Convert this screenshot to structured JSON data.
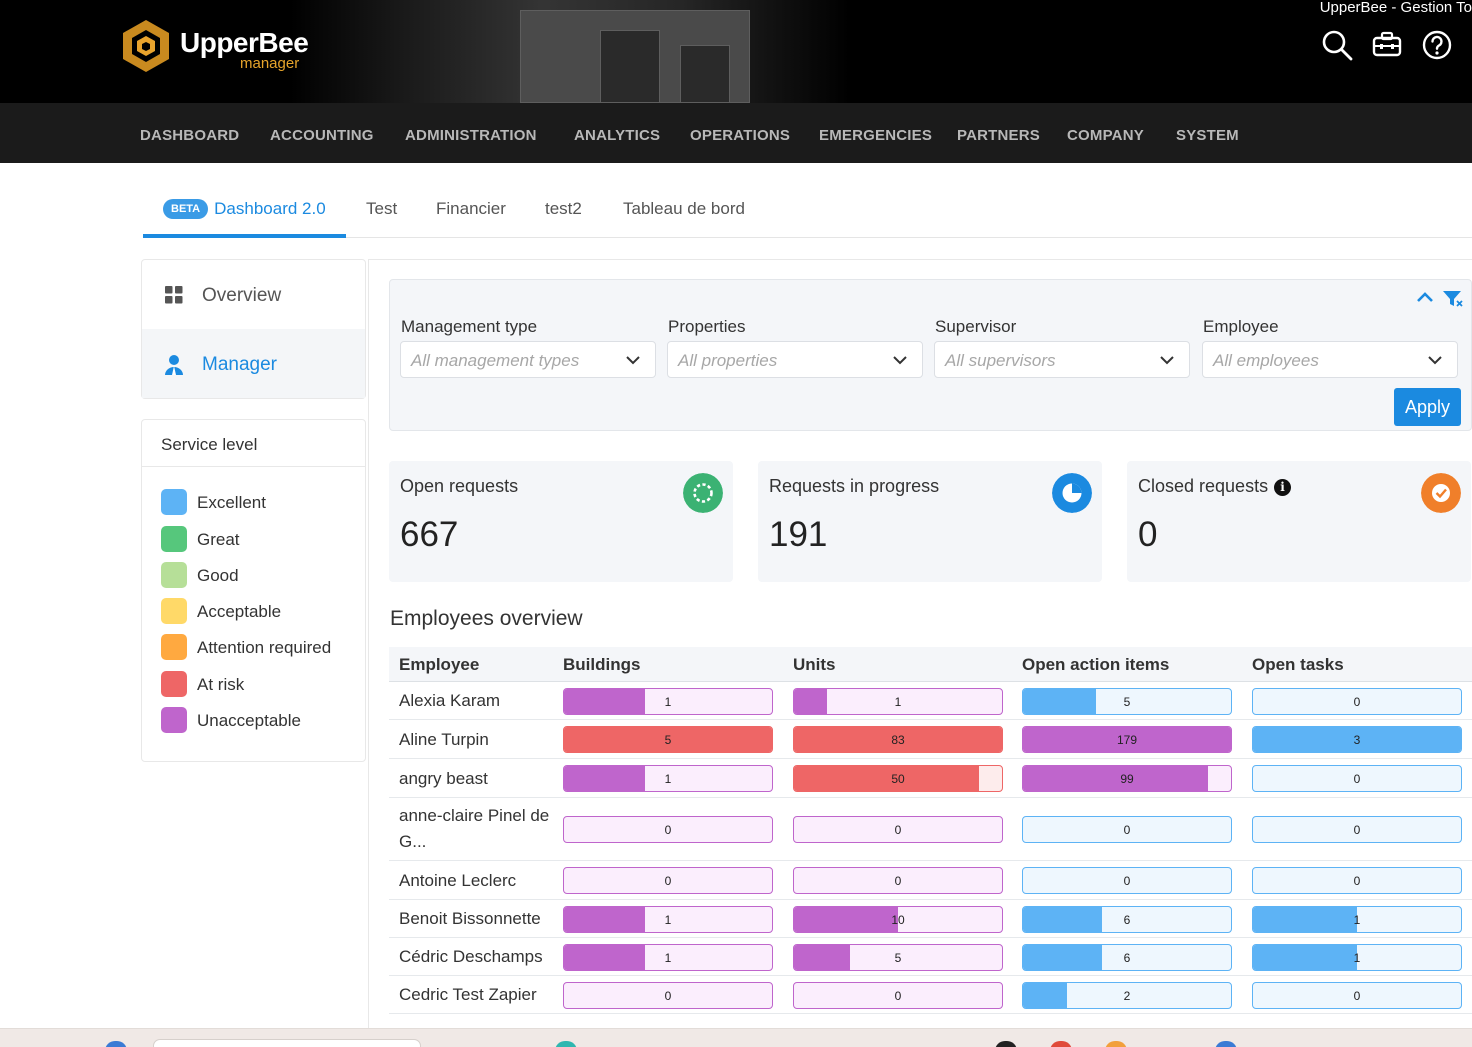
{
  "window": {
    "title": "UpperBee - Gestion To"
  },
  "brand": {
    "name": "UpperBee",
    "subtitle": "manager"
  },
  "header_icons": [
    "search-icon",
    "toolbox-icon",
    "help-icon"
  ],
  "nav": [
    "DASHBOARD",
    "ACCOUNTING",
    "ADMINISTRATION",
    "ANALYTICS",
    "OPERATIONS",
    "EMERGENCIES",
    "PARTNERS",
    "COMPANY",
    "SYSTEM"
  ],
  "tabs": {
    "badge": "BETA",
    "items": [
      "Dashboard 2.0",
      "Test",
      "Financier",
      "test2",
      "Tableau de bord"
    ],
    "active": 0
  },
  "sidebar": {
    "items": [
      {
        "label": "Overview",
        "icon": "grid-icon"
      },
      {
        "label": "Manager",
        "icon": "user-icon",
        "selected": true
      }
    ]
  },
  "service_level": {
    "title": "Service level",
    "levels": [
      {
        "label": "Excellent",
        "color": "#5db3f5"
      },
      {
        "label": "Great",
        "color": "#56c77c"
      },
      {
        "label": "Good",
        "color": "#b6df98"
      },
      {
        "label": "Acceptable",
        "color": "#ffd968"
      },
      {
        "label": "Attention required",
        "color": "#ffa940"
      },
      {
        "label": "At risk",
        "color": "#ee6666"
      },
      {
        "label": "Unacceptable",
        "color": "#bf65cc"
      }
    ]
  },
  "filters": {
    "fields": [
      {
        "label": "Management type",
        "placeholder": "All management types"
      },
      {
        "label": "Properties",
        "placeholder": "All properties"
      },
      {
        "label": "Supervisor",
        "placeholder": "All supervisors"
      },
      {
        "label": "Employee",
        "placeholder": "All employees"
      }
    ],
    "apply_label": "Apply"
  },
  "cards": [
    {
      "title": "Open requests",
      "value": "667",
      "color": "#3bb273",
      "icon": "circle-dashed-icon"
    },
    {
      "title": "Requests in progress",
      "value": "191",
      "color": "#1b8ae0",
      "icon": "pie-progress-icon"
    },
    {
      "title": "Closed requests",
      "value": "0",
      "color": "#f07f2a",
      "icon": "check-circle-icon",
      "info": "i"
    }
  ],
  "employees": {
    "title": "Employees overview",
    "columns": [
      "Employee",
      "Buildings",
      "Units",
      "Open action items",
      "Open tasks"
    ],
    "rows": [
      {
        "name": "Alexia Karam",
        "cells": [
          {
            "v": "1",
            "p": 0.39,
            "c": "#bf65cc",
            "bg": "#fbeefd"
          },
          {
            "v": "1",
            "p": 0.16,
            "c": "#bf65cc",
            "bg": "#fbeefd"
          },
          {
            "v": "5",
            "p": 0.35,
            "c": "#5db3f5",
            "bg": "#eef7fe"
          },
          {
            "v": "0",
            "p": 0,
            "c": "#5db3f5",
            "bg": "#eef7fe"
          }
        ]
      },
      {
        "name": "Aline Turpin",
        "cells": [
          {
            "v": "5",
            "p": 1,
            "c": "#ee6666",
            "bg": "#fdecec"
          },
          {
            "v": "83",
            "p": 1,
            "c": "#ee6666",
            "bg": "#fdecec"
          },
          {
            "v": "179",
            "p": 1,
            "c": "#bf65cc",
            "bg": "#fbeefd"
          },
          {
            "v": "3",
            "p": 1,
            "c": "#5db3f5",
            "bg": "#eef7fe"
          }
        ]
      },
      {
        "name": "angry beast",
        "cells": [
          {
            "v": "1",
            "p": 0.39,
            "c": "#bf65cc",
            "bg": "#fbeefd"
          },
          {
            "v": "50",
            "p": 0.89,
            "c": "#ee6666",
            "bg": "#fdecec"
          },
          {
            "v": "99",
            "p": 0.89,
            "c": "#bf65cc",
            "bg": "#fbeefd"
          },
          {
            "v": "0",
            "p": 0,
            "c": "#5db3f5",
            "bg": "#eef7fe"
          }
        ]
      },
      {
        "name": "anne-claire Pinel de G...",
        "cells": [
          {
            "v": "0",
            "p": 0,
            "c": "#bf65cc",
            "bg": "#fbeefd"
          },
          {
            "v": "0",
            "p": 0,
            "c": "#bf65cc",
            "bg": "#fbeefd"
          },
          {
            "v": "0",
            "p": 0,
            "c": "#5db3f5",
            "bg": "#eef7fe"
          },
          {
            "v": "0",
            "p": 0,
            "c": "#5db3f5",
            "bg": "#eef7fe"
          }
        ]
      },
      {
        "name": "Antoine Leclerc",
        "cells": [
          {
            "v": "0",
            "p": 0,
            "c": "#bf65cc",
            "bg": "#fbeefd"
          },
          {
            "v": "0",
            "p": 0,
            "c": "#bf65cc",
            "bg": "#fbeefd"
          },
          {
            "v": "0",
            "p": 0,
            "c": "#5db3f5",
            "bg": "#eef7fe"
          },
          {
            "v": "0",
            "p": 0,
            "c": "#5db3f5",
            "bg": "#eef7fe"
          }
        ]
      },
      {
        "name": "Benoit Bissonnette",
        "cells": [
          {
            "v": "1",
            "p": 0.39,
            "c": "#bf65cc",
            "bg": "#fbeefd"
          },
          {
            "v": "10",
            "p": 0.5,
            "c": "#bf65cc",
            "bg": "#fbeefd"
          },
          {
            "v": "6",
            "p": 0.38,
            "c": "#5db3f5",
            "bg": "#eef7fe"
          },
          {
            "v": "1",
            "p": 0.5,
            "c": "#5db3f5",
            "bg": "#eef7fe"
          }
        ]
      },
      {
        "name": "Cédric Deschamps",
        "cells": [
          {
            "v": "1",
            "p": 0.39,
            "c": "#bf65cc",
            "bg": "#fbeefd"
          },
          {
            "v": "5",
            "p": 0.27,
            "c": "#bf65cc",
            "bg": "#fbeefd"
          },
          {
            "v": "6",
            "p": 0.38,
            "c": "#5db3f5",
            "bg": "#eef7fe"
          },
          {
            "v": "1",
            "p": 0.5,
            "c": "#5db3f5",
            "bg": "#eef7fe"
          }
        ]
      },
      {
        "name": "Cedric Test Zapier",
        "cells": [
          {
            "v": "0",
            "p": 0,
            "c": "#bf65cc",
            "bg": "#fbeefd"
          },
          {
            "v": "0",
            "p": 0,
            "c": "#bf65cc",
            "bg": "#fbeefd"
          },
          {
            "v": "2",
            "p": 0.21,
            "c": "#5db3f5",
            "bg": "#eef7fe"
          },
          {
            "v": "0",
            "p": 0,
            "c": "#5db3f5",
            "bg": "#eef7fe"
          }
        ]
      }
    ]
  }
}
